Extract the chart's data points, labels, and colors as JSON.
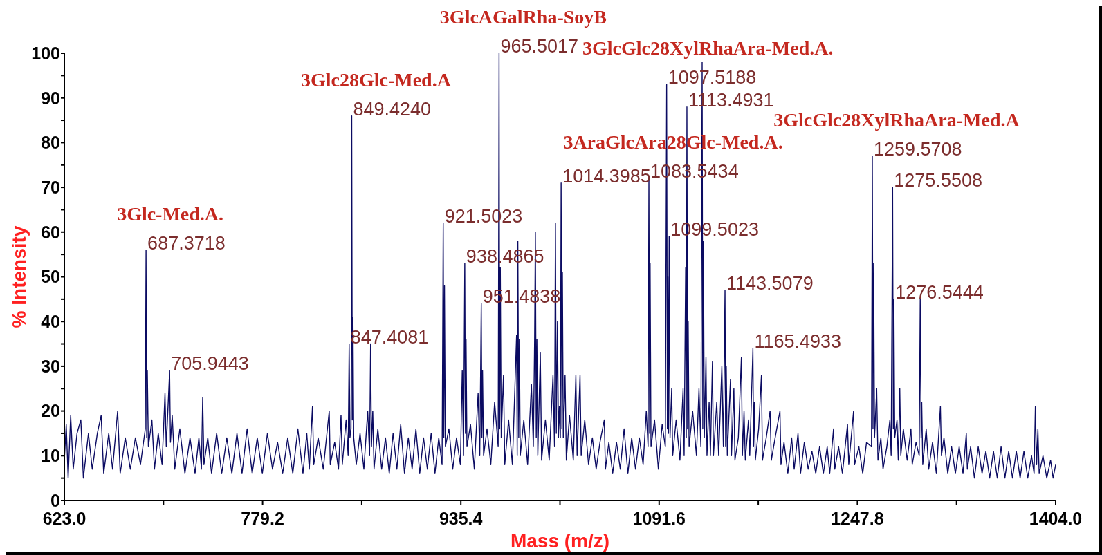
{
  "chart_data": {
    "type": "line",
    "xlabel": "Mass (m/z)",
    "ylabel": "% Intensity",
    "xlim": [
      623,
      1404
    ],
    "ylim": [
      0,
      100
    ],
    "xticks": [
      {
        "value": 623,
        "label": "623.0"
      },
      {
        "value": 701.1,
        "label": null
      },
      779.2,
      {
        "value": 857.3,
        "label": null
      },
      935.4,
      {
        "value": 1013.5,
        "label": null
      },
      1091.6,
      {
        "value": 1169.7,
        "label": null
      },
      1247.8,
      {
        "value": 1325.9,
        "label": null
      },
      {
        "value": 1404,
        "label": "1404.0"
      }
    ],
    "yticks": [
      0,
      {
        "value": 5,
        "label": null
      },
      10,
      {
        "value": 15,
        "label": null
      },
      20,
      {
        "value": 25,
        "label": null
      },
      30,
      {
        "value": 35,
        "label": null
      },
      40,
      {
        "value": 45,
        "label": null
      },
      50,
      {
        "value": 55,
        "label": null
      },
      60,
      {
        "value": 65,
        "label": null
      },
      70,
      {
        "value": 75,
        "label": null
      },
      80,
      {
        "value": 85,
        "label": null
      },
      90,
      {
        "value": 95,
        "label": null
      },
      100
    ],
    "color": "#0b0b62",
    "x": [
      623,
      624.5,
      626,
      628,
      630,
      633,
      636,
      638,
      642,
      645,
      649,
      652,
      654,
      658,
      661,
      665,
      667,
      671,
      675,
      679,
      683,
      686.8,
      687.3718,
      687.9,
      688.4,
      689.2,
      692,
      694,
      697,
      700,
      702.3,
      703.3,
      705.9443,
      706.6,
      708,
      710,
      714,
      718,
      722,
      726,
      729,
      731,
      732,
      733,
      736,
      739,
      743,
      747,
      751,
      755,
      759,
      763,
      767,
      771,
      775,
      779,
      783,
      787,
      791,
      795,
      799,
      803,
      807,
      811,
      814,
      816,
      818.5,
      819.5,
      823,
      827,
      831.7,
      832.5,
      836,
      839,
      841,
      842,
      845,
      846.6,
      847.4081,
      848,
      848.9,
      849.424,
      849.9,
      850.4,
      851,
      853,
      856,
      859,
      862,
      863.5,
      864.3,
      865,
      866,
      867,
      870,
      873,
      876,
      879,
      882,
      885,
      888,
      891,
      894,
      897,
      900,
      903,
      906,
      909,
      912,
      915,
      918,
      920.6,
      921.5023,
      922,
      922.5,
      923.2,
      926,
      929,
      932,
      935,
      936.5,
      937.5,
      938.4865,
      939,
      939.5,
      940.2,
      943,
      946,
      949,
      950.3,
      951.4838,
      952,
      952.5,
      953.3,
      956,
      959,
      962,
      964.8,
      965.5017,
      966,
      966.5,
      967.2,
      969,
      970,
      973,
      976,
      979.3,
      979.8,
      980.3,
      981,
      981.5,
      982.2,
      985,
      988,
      991,
      992.5,
      993.5,
      994.1,
      994.8,
      995.3,
      996,
      998,
      999,
      1002,
      1005,
      1008,
      1009.2,
      1009.9,
      1010.6,
      1011.5,
      1012.3,
      1013,
      1013.8,
      1014.3985,
      1015,
      1015.4,
      1016.1,
      1017.5,
      1018.5,
      1021,
      1024,
      1026,
      1027,
      1029.3,
      1030.2,
      1033,
      1036,
      1039,
      1042,
      1045,
      1048.4,
      1049.3,
      1052,
      1055,
      1058,
      1061,
      1064,
      1067,
      1070,
      1073,
      1076,
      1079,
      1081.5,
      1082.9,
      1083.5434,
      1084.1,
      1084.5,
      1085.2,
      1088,
      1091,
      1094,
      1096.5,
      1097.5188,
      1098.1,
      1098.5,
      1099,
      1099.5023,
      1100.2,
      1101.5,
      1102.3,
      1105,
      1108,
      1110.5,
      1111.3,
      1112.5,
      1113,
      1113.4931,
      1114,
      1114.5,
      1115.2,
      1118,
      1121,
      1123,
      1124.5,
      1125.5,
      1126,
      1126.5,
      1127.2,
      1128.5,
      1129.3,
      1131,
      1132,
      1133.6,
      1134.4,
      1137,
      1138.5,
      1141,
      1142.2,
      1143.5079,
      1144,
      1144.5,
      1145.3,
      1147.8,
      1148.6,
      1150.5,
      1151.3,
      1154,
      1156.4,
      1157.2,
      1158.5,
      1159.5,
      1162,
      1163,
      1165.4933,
      1166,
      1166.6,
      1167.4,
      1170,
      1172.2,
      1173,
      1176,
      1179,
      1180,
      1183,
      1186.8,
      1187.6,
      1190,
      1193,
      1196,
      1198,
      1201,
      1203,
      1206,
      1209,
      1212,
      1215,
      1218,
      1221,
      1224,
      1226,
      1229,
      1230,
      1233,
      1236,
      1240,
      1241,
      1244.8,
      1245.6,
      1249,
      1252,
      1255,
      1258.9,
      1259.5708,
      1260.1,
      1260.6,
      1261.3,
      1263,
      1264,
      1266.3,
      1268,
      1271,
      1273.4,
      1274.4,
      1275.5508,
      1276.1,
      1276.5444,
      1277.2,
      1279,
      1280,
      1281.2,
      1282,
      1284,
      1287,
      1290,
      1291,
      1294,
      1296.5,
      1297.3,
      1298,
      1298.5,
      1299.3,
      1302,
      1304,
      1307,
      1310,
      1313.2,
      1314,
      1316,
      1319,
      1322,
      1325,
      1328,
      1331,
      1333.6,
      1334.4,
      1337,
      1340,
      1343,
      1346,
      1349,
      1352,
      1355,
      1358,
      1361,
      1364,
      1367,
      1370,
      1373,
      1376,
      1379,
      1382,
      1385,
      1387,
      1388,
      1389,
      1390,
      1391,
      1394,
      1397,
      1400,
      1402,
      1404
    ],
    "values": [
      9,
      17,
      5,
      19,
      7,
      15,
      18,
      5,
      15,
      7,
      15,
      19,
      6,
      15,
      7,
      20,
      6,
      14,
      7,
      14,
      8,
      16,
      56,
      14,
      29,
      12,
      18,
      7,
      15,
      8,
      24,
      12,
      29,
      13,
      19,
      7,
      16,
      6,
      14,
      6,
      14,
      7,
      23,
      8,
      14,
      6,
      15,
      6,
      14,
      6,
      15,
      6,
      16,
      6,
      14,
      6,
      15,
      7,
      13,
      6,
      14,
      6,
      16,
      6,
      15,
      7,
      21,
      8,
      14,
      7,
      20,
      8,
      13,
      7,
      19,
      8,
      18,
      10,
      35,
      14,
      16,
      86,
      18,
      41,
      14,
      8,
      15,
      7,
      20,
      10,
      35,
      12,
      20,
      7,
      16,
      7,
      14,
      6,
      15,
      7,
      17,
      6,
      14,
      7,
      16,
      6,
      14,
      7,
      15,
      6,
      14,
      8,
      62,
      14,
      48,
      12,
      16,
      7,
      14,
      8,
      29,
      10,
      53,
      15,
      36,
      12,
      17,
      7,
      24,
      10,
      44,
      14,
      29,
      10,
      16,
      8,
      22,
      12,
      100,
      16,
      52,
      14,
      28,
      8,
      18,
      8,
      37,
      10,
      58,
      14,
      36,
      10,
      18,
      8,
      26,
      12,
      36,
      60,
      14,
      36,
      10,
      33,
      9,
      18,
      9,
      28,
      12,
      62,
      15,
      40,
      14,
      21,
      14,
      71,
      16,
      51,
      14,
      28,
      9,
      19,
      9,
      28,
      10,
      28,
      10,
      18,
      8,
      14,
      7,
      13,
      18,
      7,
      13,
      6,
      13,
      7,
      16,
      6,
      14,
      7,
      14,
      8,
      20,
      12,
      72,
      15,
      53,
      12,
      18,
      7,
      17,
      12,
      93,
      16,
      50,
      15,
      59,
      14,
      25,
      10,
      18,
      9,
      25,
      10,
      52,
      14,
      88,
      16,
      40,
      12,
      20,
      10,
      25,
      12,
      98,
      16,
      58,
      14,
      32,
      10,
      22,
      10,
      31,
      10,
      22,
      10,
      30,
      12,
      47,
      12,
      30,
      10,
      27,
      10,
      25,
      9,
      14,
      32,
      10,
      20,
      9,
      18,
      10,
      34,
      12,
      22,
      9,
      16,
      28,
      9,
      14,
      20,
      9,
      14,
      20,
      8,
      13,
      6,
      14,
      7,
      15,
      6,
      13,
      7,
      11,
      6,
      12,
      6,
      12,
      6,
      16,
      7,
      12,
      6,
      17,
      8,
      20,
      8,
      12,
      6,
      13,
      12,
      77,
      16,
      53,
      14,
      25,
      9,
      14,
      7,
      12,
      18,
      10,
      70,
      16,
      45,
      14,
      18,
      9,
      25,
      10,
      16,
      9,
      16,
      8,
      13,
      10,
      45,
      14,
      22,
      8,
      16,
      7,
      13,
      6,
      21,
      10,
      14,
      6,
      12,
      6,
      12,
      6,
      15,
      7,
      12,
      5,
      12,
      6,
      11,
      5,
      11,
      5,
      12,
      5,
      11,
      5,
      11,
      5,
      11,
      5,
      10,
      6,
      21,
      8,
      16,
      6,
      10,
      5,
      9,
      5,
      8
    ],
    "annotations": [
      {
        "text": "687.3718",
        "x": 687.3718,
        "y": 56
      },
      {
        "text": "705.9443",
        "x": 705.9443,
        "y": 29
      },
      {
        "text": "847.4081",
        "x": 847.4081,
        "y": 35
      },
      {
        "text": "849.4240",
        "x": 849.424,
        "y": 86
      },
      {
        "text": "921.5023",
        "x": 921.5023,
        "y": 62
      },
      {
        "text": "938.4865",
        "x": 938.4865,
        "y": 53
      },
      {
        "text": "951.4838",
        "x": 951.4838,
        "y": 44
      },
      {
        "text": "965.5017",
        "x": 965.5017,
        "y": 100
      },
      {
        "text": "1014.3985",
        "x": 1014.3985,
        "y": 71
      },
      {
        "text": "1083.5434",
        "x": 1083.5434,
        "y": 72
      },
      {
        "text": "1097.5188",
        "x": 1097.5188,
        "y": 93
      },
      {
        "text": "1099.5023",
        "x": 1099.5023,
        "y": 59
      },
      {
        "text": "1113.4931",
        "x": 1113.4931,
        "y": 88
      },
      {
        "text": "1143.5079",
        "x": 1143.5079,
        "y": 47
      },
      {
        "text": "1165.4933",
        "x": 1165.4933,
        "y": 34
      },
      {
        "text": "1259.5708",
        "x": 1259.5708,
        "y": 77
      },
      {
        "text": "1275.5508",
        "x": 1275.5508,
        "y": 70
      },
      {
        "text": "1276.5444",
        "x": 1276.5444,
        "y": 45
      },
      {
        "text": "3Glc-Med.A.",
        "x": 687.3718,
        "y": 56
      },
      {
        "text": "3Glc28Glc-Med.A",
        "x": 849.424,
        "y": 86
      },
      {
        "text": "3GlcAGalRha-SoyB",
        "x": 965.5017,
        "y": 100
      },
      {
        "text": "3GlcGlc28XylRhaAra-Med.A.",
        "x": 1097.5188,
        "y": 93
      },
      {
        "text": "3AraGlcAra28Glc-Med.A.",
        "x": 1083.5434,
        "y": 72
      },
      {
        "text": "3GlcGlc28XylRhaAra-Med.A",
        "x": 1259.5708,
        "y": 77
      }
    ]
  }
}
